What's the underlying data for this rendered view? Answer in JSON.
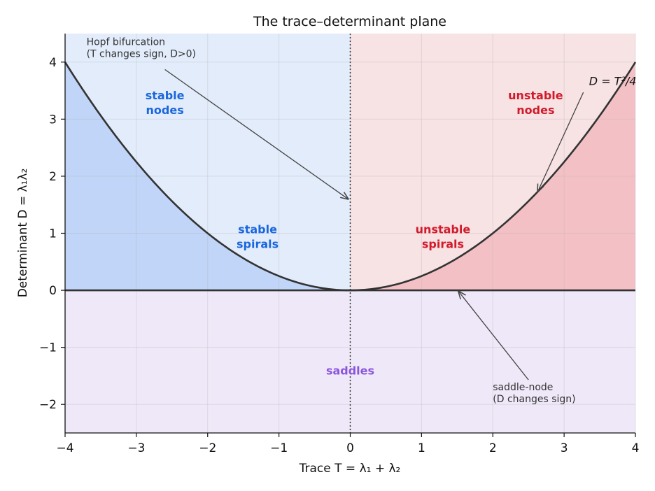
{
  "chart_data": {
    "type": "line",
    "title": "The trace–determinant plane",
    "xlabel": "Trace  T = λ₁ + λ₂",
    "ylabel": "Determinant  D = λ₁λ₂",
    "xlim": [
      -4,
      4
    ],
    "ylim": [
      -2.5,
      4.5
    ],
    "xticks": [
      -4,
      -3,
      -2,
      -1,
      0,
      1,
      2,
      3,
      4
    ],
    "yticks": [
      -2,
      -1,
      0,
      1,
      2,
      3,
      4
    ],
    "xtick_labels": [
      "−4",
      "−3",
      "−2",
      "−1",
      "0",
      "1",
      "2",
      "3",
      "4"
    ],
    "ytick_labels": [
      "−2",
      "−1",
      "0",
      "1",
      "2",
      "3",
      "4"
    ],
    "grid": true,
    "curve": {
      "label": "D = T²/4",
      "formula": "D = T^2/4",
      "x": [
        -4,
        -3.5,
        -3,
        -2.5,
        -2,
        -1.5,
        -1,
        -0.5,
        0,
        0.5,
        1,
        1.5,
        2,
        2.5,
        3,
        3.5,
        4
      ],
      "y": [
        4,
        3.0625,
        2.25,
        1.5625,
        1,
        0.5625,
        0.25,
        0.0625,
        0,
        0.0625,
        0.25,
        0.5625,
        1,
        1.5625,
        2.25,
        3.0625,
        4
      ]
    },
    "regions": [
      {
        "label_lines": [
          "stable",
          "nodes"
        ],
        "x": -2.6,
        "y": 3.3,
        "color": "#1a66dd"
      },
      {
        "label_lines": [
          "stable",
          "spirals"
        ],
        "x": -1.3,
        "y": 0.95,
        "color": "#1a66dd"
      },
      {
        "label_lines": [
          "unstable",
          "nodes"
        ],
        "x": 2.6,
        "y": 3.3,
        "color": "#d11a2a"
      },
      {
        "label_lines": [
          "unstable",
          "spirals"
        ],
        "x": 1.3,
        "y": 0.95,
        "color": "#d11a2a"
      },
      {
        "label_lines": [
          "saddles"
        ],
        "x": 0,
        "y": -1.4,
        "color": "#8a55dd"
      }
    ],
    "annotations": [
      {
        "lines": [
          "Hopf bifurcation",
          "(T changes sign, D>0)"
        ],
        "text_x": -3.7,
        "text_y": 4.3,
        "arrow_from": [
          -2.6,
          3.87
        ],
        "arrow_to": [
          -0.03,
          1.6
        ]
      },
      {
        "lines": [
          "saddle-node",
          "(D changes sign)"
        ],
        "text_x": 2.0,
        "text_y": -1.75,
        "arrow_from": [
          2.5,
          -1.57
        ],
        "arrow_to": [
          1.52,
          -0.02
        ]
      },
      {
        "lines": [
          "D = T²/4"
        ],
        "text_x": 3.35,
        "text_y": 3.6,
        "arrow_from": [
          3.27,
          3.47
        ],
        "arrow_to": [
          2.63,
          1.73
        ]
      }
    ],
    "colors": {
      "stable_light": "#e2ecfb",
      "stable_dark": "#c0d5f7",
      "unstable_light": "#f7e2e4",
      "unstable_dark": "#f3c1c5",
      "saddle": "#efe8f8",
      "curve": "#333333"
    }
  }
}
